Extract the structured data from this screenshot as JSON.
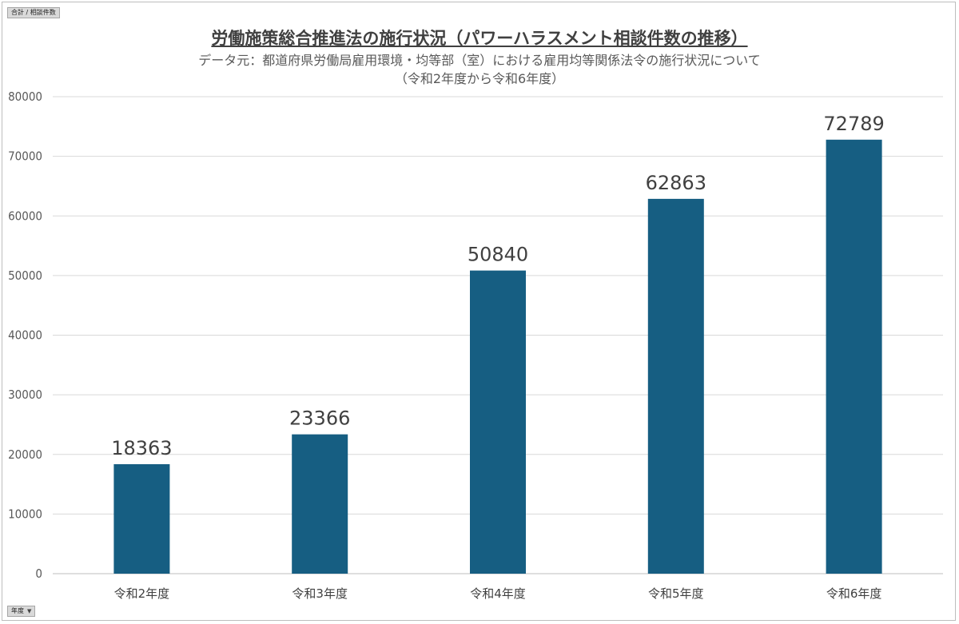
{
  "filter_button": {
    "label": "合計 / 相談件数"
  },
  "axis_field_button": {
    "label": "年度"
  },
  "chart_data": {
    "type": "bar",
    "title": "労働施策総合推進法の施行状況（パワーハラスメント相談件数の推移）",
    "subtitle": [
      "データ元：都道府県労働局雇用環境・均等部（室）における雇用均等関係法令の施行状況について",
      "（令和2年度から令和6年度）"
    ],
    "categories": [
      "令和2年度",
      "令和3年度",
      "令和4年度",
      "令和5年度",
      "令和6年度"
    ],
    "values": [
      18363,
      23366,
      50840,
      62863,
      72789
    ],
    "ylim": [
      0,
      80000
    ],
    "yticks": [
      0,
      10000,
      20000,
      30000,
      40000,
      50000,
      60000,
      70000,
      80000
    ],
    "grid": true,
    "legend": "none",
    "bar_color": "#165e82",
    "grid_color": "#d9d9d9"
  }
}
